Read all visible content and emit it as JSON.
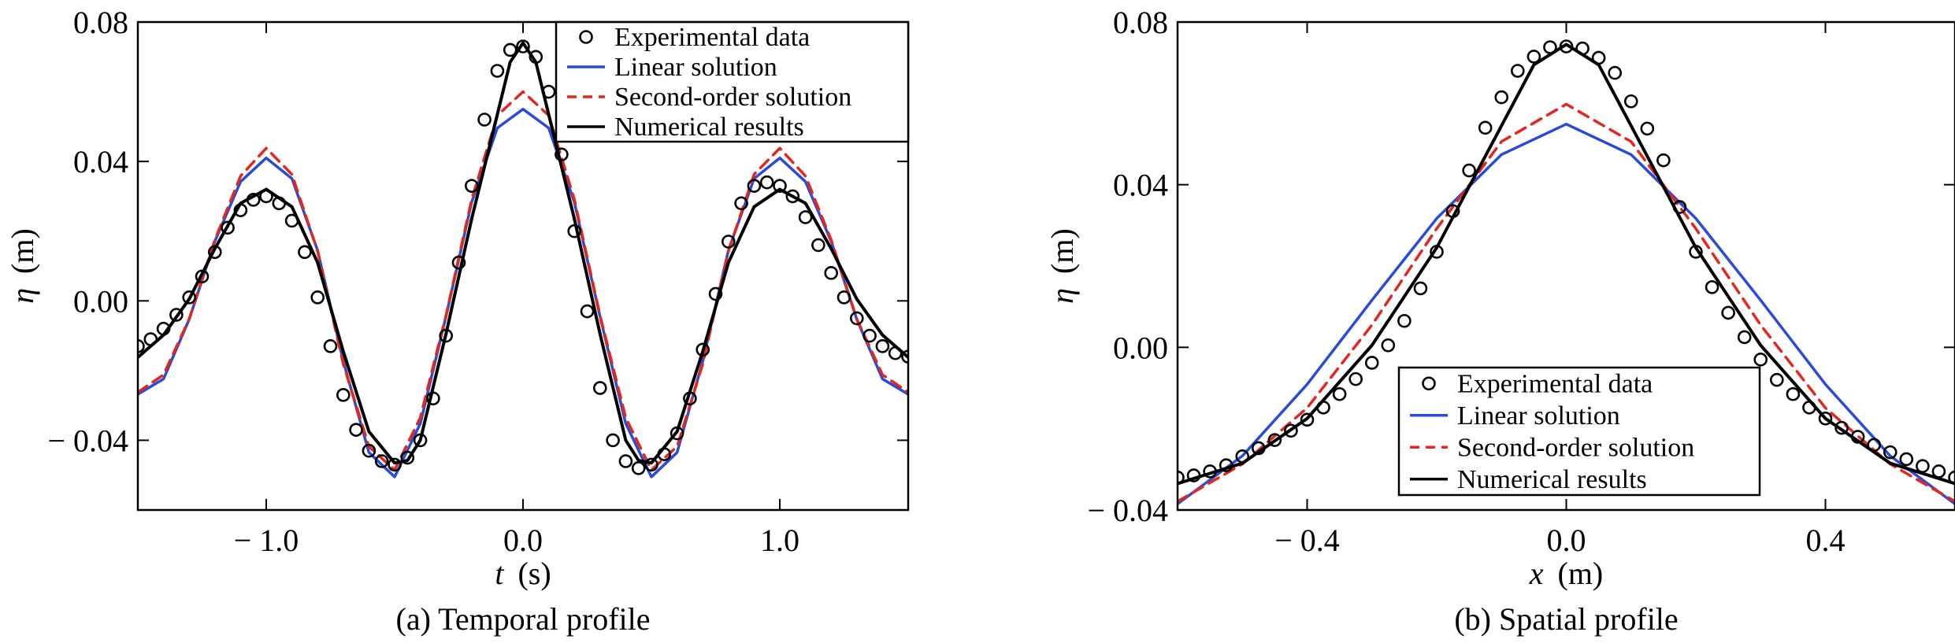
{
  "chart_data": [
    {
      "type": "line",
      "panel": "a",
      "caption": "(a) Temporal profile",
      "xlabel_var": "t",
      "xlabel_unit": " (s)",
      "ylabel_var": "η",
      "ylabel_unit": " (m)",
      "xlim": [
        -1.5,
        1.5
      ],
      "ylim": [
        -0.06,
        0.08
      ],
      "xticks": [
        -1.0,
        0.0,
        1.0
      ],
      "xtick_labels": [
        "− 1.0",
        "0.0",
        "1.0"
      ],
      "yticks": [
        -0.04,
        0.0,
        0.04,
        0.08
      ],
      "ytick_labels": [
        "− 0.04",
        "0.00",
        "0.04",
        "0.08"
      ],
      "legend": [
        "Experimental data",
        "Linear solution",
        "Second-order solution",
        "Numerical results"
      ],
      "legend_position": "top-right",
      "grid": false,
      "series": [
        {
          "name": "Linear solution",
          "color": "#2a4bd7",
          "dash": "solid",
          "x": [
            -1.5,
            -1.4,
            -1.3,
            -1.2,
            -1.1,
            -1.0,
            -0.9,
            -0.8,
            -0.7,
            -0.6,
            -0.5,
            -0.4,
            -0.3,
            -0.2,
            -0.1,
            0.0,
            0.1,
            0.2,
            0.3,
            0.4,
            0.5,
            0.6,
            0.7,
            0.8,
            0.9,
            1.0,
            1.1,
            1.2,
            1.3,
            1.4,
            1.5
          ],
          "y": [
            -0.0268,
            -0.0224,
            -0.0053,
            0.0171,
            0.0342,
            0.041,
            0.0351,
            0.0145,
            -0.0173,
            -0.0435,
            -0.0505,
            -0.0352,
            -0.0045,
            0.0283,
            0.0496,
            0.055,
            0.0496,
            0.0283,
            -0.0045,
            -0.0352,
            -0.0505,
            -0.0435,
            -0.0173,
            0.0145,
            0.0351,
            0.041,
            0.0342,
            0.0171,
            -0.0053,
            -0.0224,
            -0.0268
          ]
        },
        {
          "name": "Second-order solution",
          "color": "#e0281e",
          "dash": "dashed",
          "x": [
            -1.5,
            -1.4,
            -1.3,
            -1.2,
            -1.1,
            -1.0,
            -0.9,
            -0.8,
            -0.7,
            -0.6,
            -0.5,
            -0.4,
            -0.3,
            -0.2,
            -0.1,
            0.0,
            0.1,
            0.2,
            0.3,
            0.4,
            0.5,
            0.6,
            0.7,
            0.8,
            0.9,
            1.0,
            1.1,
            1.2,
            1.3,
            1.4,
            1.5
          ],
          "y": [
            -0.0262,
            -0.0212,
            -0.0052,
            0.0175,
            0.0358,
            0.0438,
            0.0363,
            0.0143,
            -0.0181,
            -0.0418,
            -0.0485,
            -0.0335,
            -0.0042,
            0.0291,
            0.0532,
            0.06,
            0.0532,
            0.0291,
            -0.0042,
            -0.0335,
            -0.0485,
            -0.0418,
            -0.0181,
            0.0143,
            0.0363,
            0.0438,
            0.0358,
            0.0175,
            -0.0052,
            -0.0212,
            -0.0262
          ]
        },
        {
          "name": "Numerical results",
          "color": "#000000",
          "dash": "solid",
          "x": [
            -1.5,
            -1.4,
            -1.3,
            -1.2,
            -1.1,
            -1.0,
            -0.9,
            -0.8,
            -0.7,
            -0.6,
            -0.5,
            -0.45,
            -0.4,
            -0.3,
            -0.2,
            -0.1,
            -0.05,
            0.0,
            0.05,
            0.1,
            0.2,
            0.3,
            0.4,
            0.45,
            0.5,
            0.6,
            0.7,
            0.8,
            0.9,
            1.0,
            1.1,
            1.2,
            1.3,
            1.4,
            1.5
          ],
          "y": [
            -0.0162,
            -0.0098,
            0.0005,
            0.015,
            0.028,
            0.032,
            0.027,
            0.011,
            -0.0145,
            -0.0375,
            -0.0465,
            -0.0458,
            -0.04,
            -0.0095,
            0.0235,
            0.0535,
            0.0685,
            0.074,
            0.0685,
            0.0535,
            0.0235,
            -0.0095,
            -0.04,
            -0.0458,
            -0.0465,
            -0.0375,
            -0.0145,
            0.011,
            0.027,
            0.032,
            0.028,
            0.015,
            0.0005,
            -0.0098,
            -0.0162
          ]
        },
        {
          "name": "Experimental data",
          "marker": "circle",
          "x": [
            -1.5,
            -1.45,
            -1.4,
            -1.35,
            -1.3,
            -1.25,
            -1.2,
            -1.15,
            -1.1,
            -1.05,
            -1.0,
            -0.95,
            -0.9,
            -0.85,
            -0.8,
            -0.75,
            -0.7,
            -0.65,
            -0.6,
            -0.55,
            -0.5,
            -0.45,
            -0.4,
            -0.35,
            -0.3,
            -0.25,
            -0.2,
            -0.15,
            -0.1,
            -0.05,
            0.0,
            0.05,
            0.1,
            0.15,
            0.2,
            0.25,
            0.3,
            0.35,
            0.4,
            0.45,
            0.5,
            0.55,
            0.6,
            0.65,
            0.7,
            0.75,
            0.8,
            0.85,
            0.9,
            0.95,
            1.0,
            1.05,
            1.1,
            1.15,
            1.2,
            1.25,
            1.3,
            1.35,
            1.4,
            1.45,
            1.5
          ],
          "y": [
            -0.013,
            -0.011,
            -0.008,
            -0.004,
            0.001,
            0.007,
            0.014,
            0.021,
            0.026,
            0.029,
            0.03,
            0.028,
            0.023,
            0.014,
            0.001,
            -0.013,
            -0.027,
            -0.037,
            -0.043,
            -0.046,
            -0.047,
            -0.045,
            -0.04,
            -0.028,
            -0.01,
            0.011,
            0.033,
            0.052,
            0.066,
            0.072,
            0.073,
            0.07,
            0.06,
            0.042,
            0.02,
            -0.003,
            -0.025,
            -0.04,
            -0.046,
            -0.048,
            -0.047,
            -0.044,
            -0.038,
            -0.028,
            -0.014,
            0.002,
            0.017,
            0.028,
            0.033,
            0.034,
            0.033,
            0.03,
            0.024,
            0.016,
            0.008,
            0.001,
            -0.005,
            -0.01,
            -0.013,
            -0.015,
            -0.016
          ]
        }
      ]
    },
    {
      "type": "line",
      "panel": "b",
      "caption": "(b) Spatial profile",
      "xlabel_var": "x",
      "xlabel_unit": " (m)",
      "ylabel_var": "η",
      "ylabel_unit": " (m)",
      "xlim": [
        -0.6,
        0.6
      ],
      "ylim": [
        -0.04,
        0.08
      ],
      "xticks": [
        -0.4,
        0.0,
        0.4
      ],
      "xtick_labels": [
        "− 0.4",
        "0.0",
        "0.4"
      ],
      "yticks": [
        -0.04,
        0.0,
        0.04,
        0.08
      ],
      "ytick_labels": [
        "− 0.04",
        "0.00",
        "0.04",
        "0.08"
      ],
      "legend": [
        "Experimental data",
        "Linear solution",
        "Second-order solution",
        "Numerical results"
      ],
      "legend_position": "lower-center",
      "grid": false,
      "series": [
        {
          "name": "Linear solution",
          "color": "#2a4bd7",
          "dash": "solid",
          "x": [
            -0.6,
            -0.5,
            -0.4,
            -0.3,
            -0.2,
            -0.1,
            0.0,
            0.1,
            0.2,
            0.3,
            0.4,
            0.5,
            0.6
          ],
          "y": [
            -0.0385,
            -0.0267,
            -0.0091,
            0.0116,
            0.0317,
            0.0474,
            0.0549,
            0.0474,
            0.0317,
            0.0116,
            -0.0091,
            -0.0267,
            -0.0385
          ]
        },
        {
          "name": "Second-order solution",
          "color": "#e0281e",
          "dash": "dashed",
          "x": [
            -0.6,
            -0.5,
            -0.4,
            -0.3,
            -0.2,
            -0.1,
            0.0,
            0.1,
            0.2,
            0.3,
            0.4,
            0.5,
            0.6
          ],
          "y": [
            -0.0379,
            -0.0287,
            -0.0149,
            0.0055,
            0.0292,
            0.0506,
            0.0598,
            0.0506,
            0.0292,
            0.0055,
            -0.0149,
            -0.0287,
            -0.0379
          ]
        },
        {
          "name": "Numerical results",
          "color": "#000000",
          "dash": "solid",
          "x": [
            -0.6,
            -0.5,
            -0.4,
            -0.3,
            -0.2,
            -0.1,
            -0.05,
            0.0,
            0.05,
            0.1,
            0.2,
            0.3,
            0.4,
            0.5,
            0.6
          ],
          "y": [
            -0.0335,
            -0.0285,
            -0.0175,
            0.0005,
            0.0245,
            0.0545,
            0.0695,
            0.0745,
            0.0695,
            0.0545,
            0.0245,
            0.0005,
            -0.0175,
            -0.0285,
            -0.0335
          ]
        },
        {
          "name": "Experimental data",
          "marker": "circle",
          "x": [
            -0.6,
            -0.575,
            -0.55,
            -0.525,
            -0.5,
            -0.475,
            -0.45,
            -0.425,
            -0.4,
            -0.375,
            -0.35,
            -0.325,
            -0.3,
            -0.275,
            -0.25,
            -0.225,
            -0.2,
            -0.175,
            -0.15,
            -0.125,
            -0.1,
            -0.075,
            -0.05,
            -0.025,
            0.0,
            0.025,
            0.05,
            0.075,
            0.1,
            0.125,
            0.15,
            0.175,
            0.2,
            0.225,
            0.25,
            0.275,
            0.3,
            0.325,
            0.35,
            0.375,
            0.4,
            0.425,
            0.45,
            0.475,
            0.5,
            0.525,
            0.55,
            0.575,
            0.6
          ],
          "y": [
            -0.032,
            -0.0315,
            -0.0305,
            -0.029,
            -0.0268,
            -0.0248,
            -0.0228,
            -0.0205,
            -0.0178,
            -0.0148,
            -0.0115,
            -0.0078,
            -0.0038,
            0.0005,
            0.0065,
            0.0145,
            0.0235,
            0.0335,
            0.0435,
            0.054,
            0.0615,
            0.068,
            0.0715,
            0.0738,
            0.074,
            0.0735,
            0.0712,
            0.0675,
            0.0605,
            0.0538,
            0.046,
            0.0345,
            0.0235,
            0.0148,
            0.0085,
            0.0025,
            -0.003,
            -0.008,
            -0.0115,
            -0.0148,
            -0.0175,
            -0.0198,
            -0.022,
            -0.024,
            -0.0258,
            -0.0275,
            -0.0292,
            -0.0305,
            -0.032
          ]
        }
      ]
    }
  ]
}
